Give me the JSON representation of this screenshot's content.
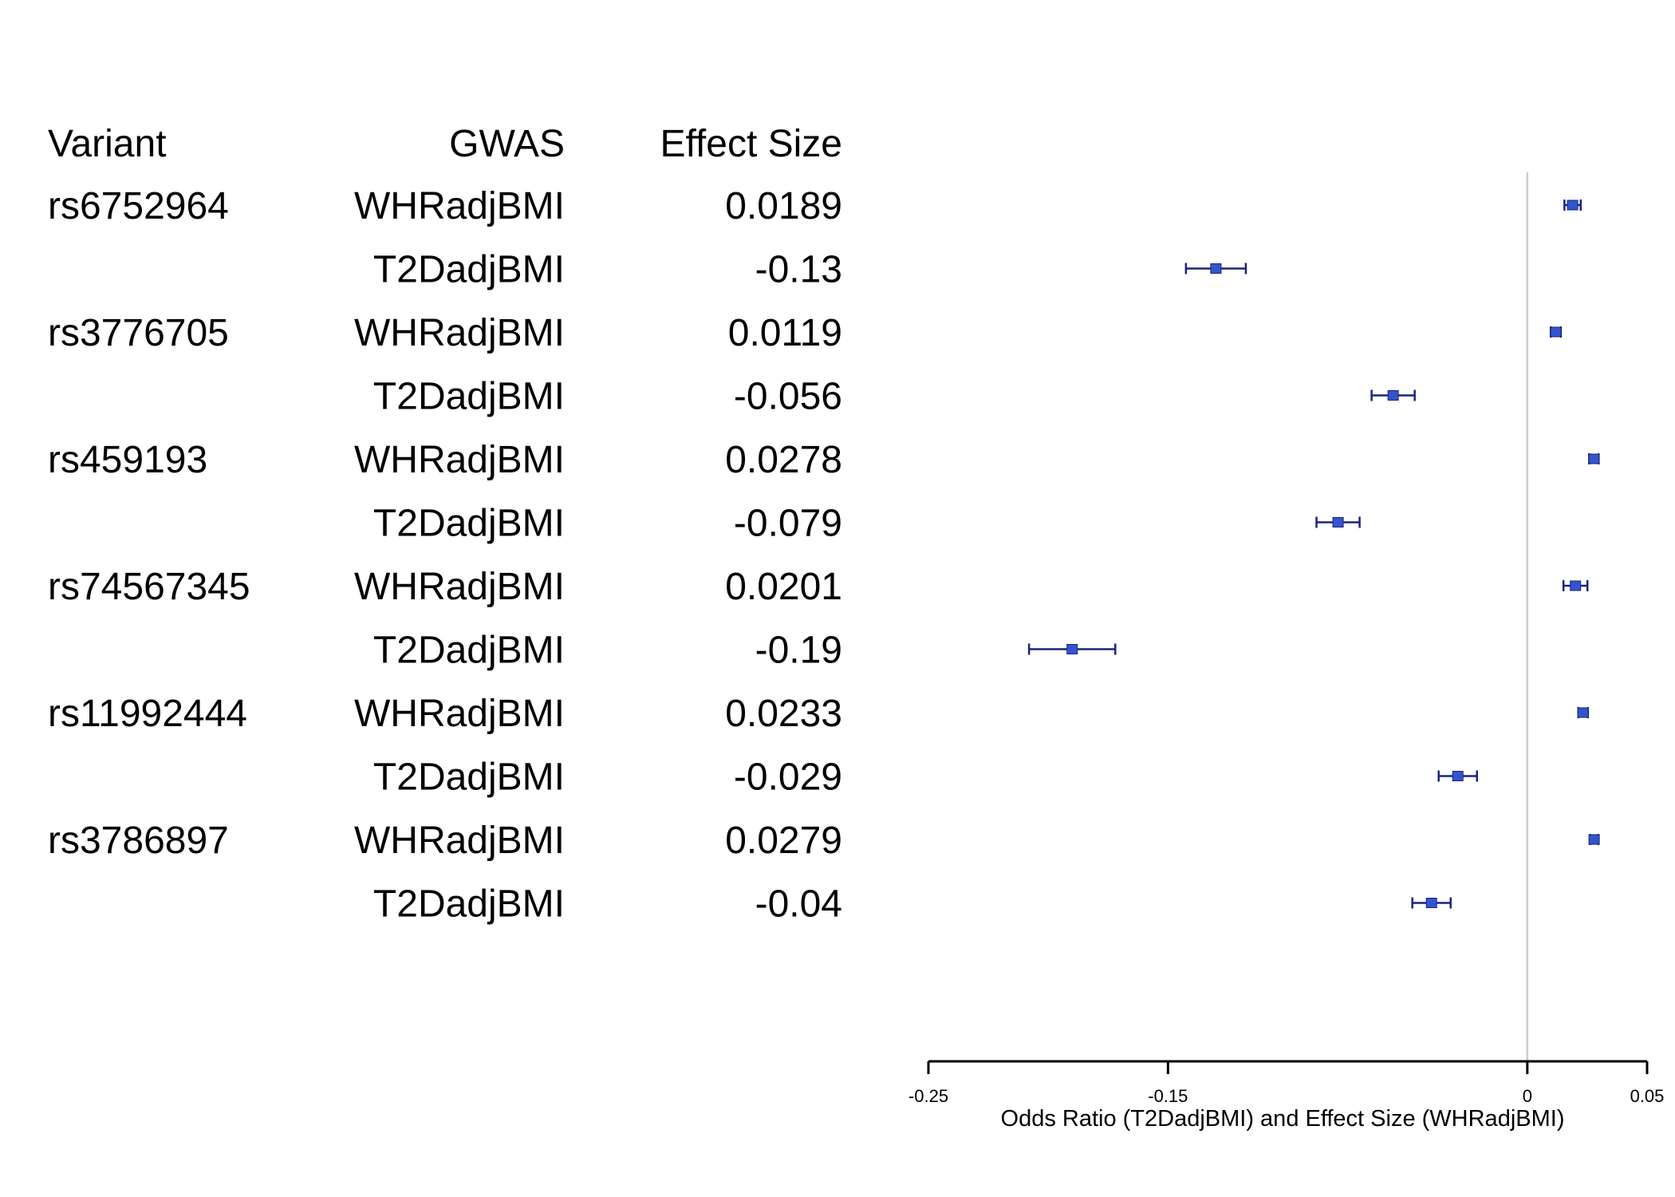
{
  "table": {
    "headers": {
      "variant": "Variant",
      "gwas": "GWAS",
      "effect": "Effect Size"
    }
  },
  "chart_data": {
    "type": "forest",
    "xlabel": "Odds Ratio (T2DadjBMI) and Effect Size (WHRadjBMI)",
    "xlim": [
      -0.25,
      0.05
    ],
    "xticks": [
      -0.25,
      -0.15,
      0,
      0.05
    ],
    "xtick_labels": [
      "-0.25",
      "-0.15",
      "0",
      "0.05"
    ],
    "reference_line": 0,
    "colors": {
      "point": "#3355cc",
      "whisker": "#1a237e",
      "reference": "#cccccc",
      "axis": "#000000"
    },
    "rows": [
      {
        "variant": "rs6752964",
        "gwas": "WHRadjBMI",
        "effect_label": "0.0189",
        "value": 0.0189,
        "ci": [
          0.0155,
          0.0223
        ]
      },
      {
        "variant": "",
        "gwas": "T2DadjBMI",
        "effect_label": "-0.13",
        "value": -0.13,
        "ci": [
          -0.1425,
          -0.1175
        ]
      },
      {
        "variant": "rs3776705",
        "gwas": "WHRadjBMI",
        "effect_label": "0.0119",
        "value": 0.0119,
        "ci": [
          0.0098,
          0.014
        ]
      },
      {
        "variant": "",
        "gwas": "T2DadjBMI",
        "effect_label": "-0.056",
        "value": -0.056,
        "ci": [
          -0.065,
          -0.047
        ]
      },
      {
        "variant": "rs459193",
        "gwas": "WHRadjBMI",
        "effect_label": "0.0278",
        "value": 0.0278,
        "ci": [
          0.0258,
          0.0298
        ]
      },
      {
        "variant": "",
        "gwas": "T2DadjBMI",
        "effect_label": "-0.079",
        "value": -0.079,
        "ci": [
          -0.088,
          -0.07
        ]
      },
      {
        "variant": "rs74567345",
        "gwas": "WHRadjBMI",
        "effect_label": "0.0201",
        "value": 0.0201,
        "ci": [
          0.0151,
          0.0251
        ]
      },
      {
        "variant": "",
        "gwas": "T2DadjBMI",
        "effect_label": "-0.19",
        "value": -0.19,
        "ci": [
          -0.208,
          -0.172
        ]
      },
      {
        "variant": "rs11992444",
        "gwas": "WHRadjBMI",
        "effect_label": "0.0233",
        "value": 0.0233,
        "ci": [
          0.0213,
          0.0253
        ]
      },
      {
        "variant": "",
        "gwas": "T2DadjBMI",
        "effect_label": "-0.029",
        "value": -0.029,
        "ci": [
          -0.037,
          -0.021
        ]
      },
      {
        "variant": "rs3786897",
        "gwas": "WHRadjBMI",
        "effect_label": "0.0279",
        "value": 0.0279,
        "ci": [
          0.0262,
          0.0296
        ]
      },
      {
        "variant": "",
        "gwas": "T2DadjBMI",
        "effect_label": "-0.04",
        "value": -0.04,
        "ci": [
          -0.048,
          -0.032
        ]
      }
    ]
  }
}
